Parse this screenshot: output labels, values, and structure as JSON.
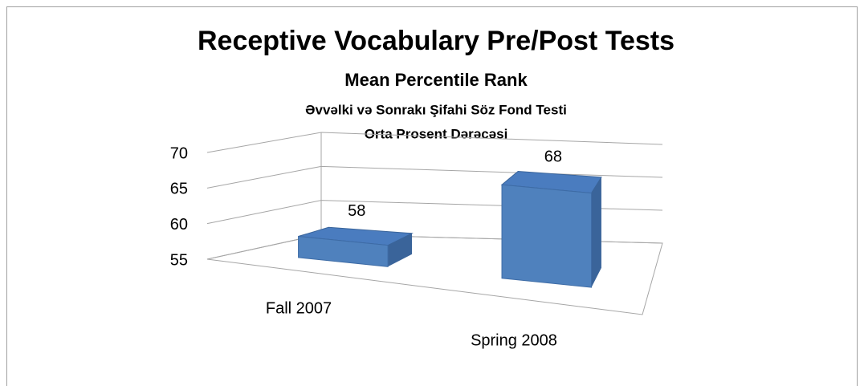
{
  "chart_data": {
    "type": "bar3d",
    "title": "Receptive Vocabulary Pre/Post Tests",
    "subtitle": [
      "Mean Percentile Rank",
      "Əvvəlki və Sonrakı Şifahi Söz Fond Testi",
      "Orta Prosent Dərəcəsi"
    ],
    "categories": [
      "Fall 2007",
      "Spring 2008"
    ],
    "values": [
      58,
      68
    ],
    "color": "#4f81bd",
    "ylim": [
      55,
      70
    ],
    "yticks": [
      55,
      60,
      65,
      70
    ],
    "grid": true
  }
}
